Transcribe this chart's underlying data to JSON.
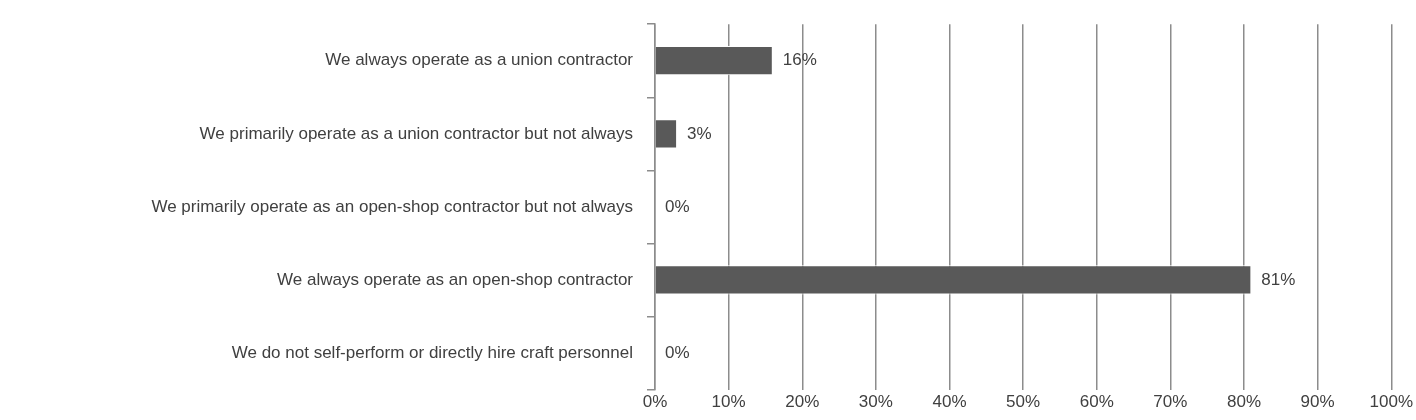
{
  "chart_data": {
    "type": "bar",
    "orientation": "horizontal",
    "categories": [
      "We always operate as a union contractor",
      "We primarily operate as a union contractor but not always",
      "We primarily operate as an open-shop contractor but not always",
      "We always operate as an open-shop contractor",
      "We do not self-perform or directly hire craft personnel"
    ],
    "values": [
      16,
      3,
      0,
      81,
      0
    ],
    "value_labels": [
      "16%",
      "3%",
      "0%",
      "81%",
      "0%"
    ],
    "color": "#595959",
    "xlim": [
      0,
      100
    ],
    "xticks": [
      {
        "value": 0,
        "label": "0%"
      },
      {
        "value": 10,
        "label": "10%"
      },
      {
        "value": 20,
        "label": "20%"
      },
      {
        "value": 30,
        "label": "30%"
      },
      {
        "value": 40,
        "label": "40%"
      },
      {
        "value": 50,
        "label": "50%"
      },
      {
        "value": 60,
        "label": "60%"
      },
      {
        "value": 70,
        "label": "70%"
      },
      {
        "value": 80,
        "label": "80%"
      },
      {
        "value": 90,
        "label": "90%"
      },
      {
        "value": 100,
        "label": "100%"
      }
    ],
    "grid": "x",
    "legend": false
  }
}
